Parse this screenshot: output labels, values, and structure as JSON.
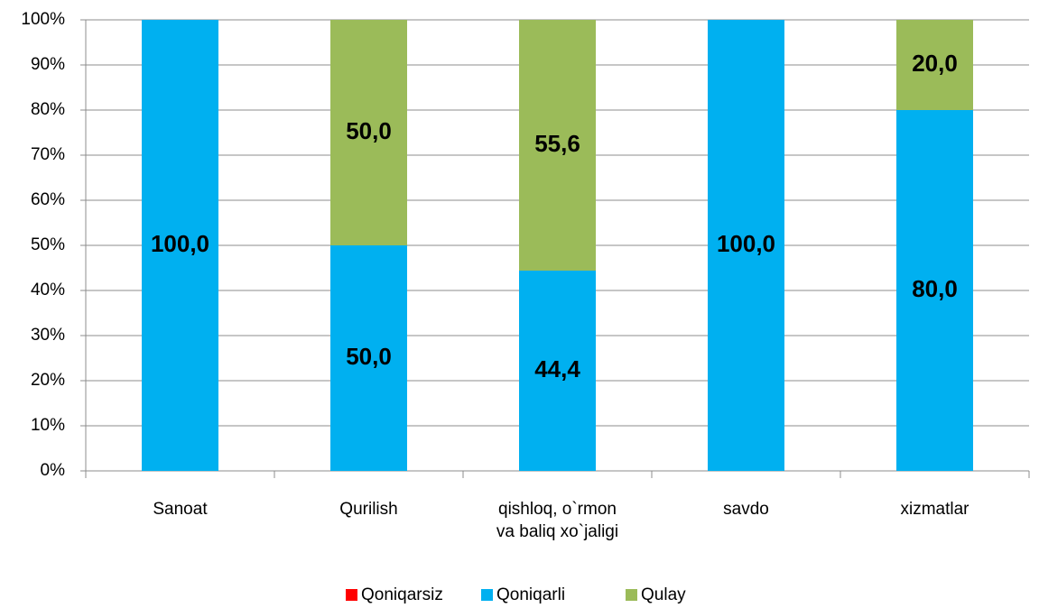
{
  "chart_data": {
    "type": "stacked_bar",
    "categories": [
      "Sanoat",
      "Qurilish",
      "qishloq, o`rmon\nva baliq xo`jaligi",
      "savdo",
      "xizmatlar"
    ],
    "series": [
      {
        "name": "Qoniqarsiz",
        "color": "#ff0000",
        "values": [
          0,
          0,
          0,
          0,
          0
        ]
      },
      {
        "name": "Qoniqarli",
        "color": "#00b0f0",
        "values": [
          100,
          50,
          44.4,
          100,
          80
        ],
        "value_labels": [
          "100,0",
          "50,0",
          "44,4",
          "100,0",
          "80,0"
        ]
      },
      {
        "name": "Qulay",
        "color": "#9bbb59",
        "values": [
          0,
          50,
          55.6,
          0,
          20
        ],
        "value_labels": [
          null,
          "50,0",
          "55,6",
          null,
          "20,0"
        ]
      }
    ],
    "ylim": [
      0,
      100
    ],
    "yticks": [
      {
        "value": 0,
        "label": "0%"
      },
      {
        "value": 10,
        "label": "10%"
      },
      {
        "value": 20,
        "label": "20%"
      },
      {
        "value": 30,
        "label": "30%"
      },
      {
        "value": 40,
        "label": "40%"
      },
      {
        "value": 50,
        "label": "50%"
      },
      {
        "value": 60,
        "label": "60%"
      },
      {
        "value": 70,
        "label": "70%"
      },
      {
        "value": 80,
        "label": "80%"
      },
      {
        "value": 90,
        "label": "90%"
      },
      {
        "value": 100,
        "label": "100%"
      }
    ],
    "grid": true,
    "legend": "bottom"
  }
}
